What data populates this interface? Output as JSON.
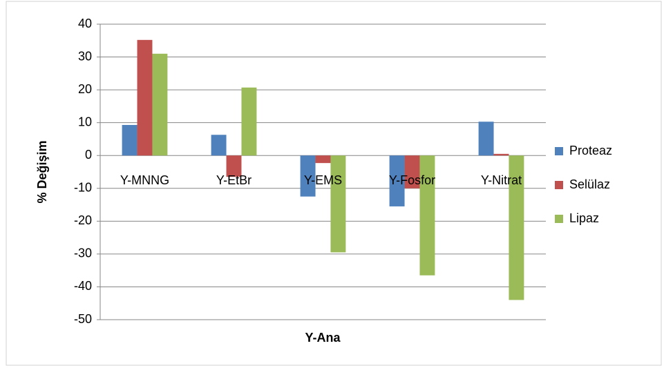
{
  "chart_data": {
    "type": "bar",
    "x_label": "Y-Ana",
    "y_label": "% Değişim",
    "categories": [
      "Y-MNNG",
      "Y-EtBr",
      "Y-EMS",
      "Y-Fosfor",
      "Y-Nitrat"
    ],
    "series": [
      {
        "name": "Proteaz",
        "color": "#4f81bd",
        "values": [
          9.3,
          6.3,
          -12.5,
          -15.5,
          10.3
        ]
      },
      {
        "name": "Selülaz",
        "color": "#c0504d",
        "values": [
          35.2,
          -6.5,
          -2.3,
          -10,
          0.5
        ]
      },
      {
        "name": "Lipaz",
        "color": "#9bbb59",
        "values": [
          31,
          20.7,
          -29.5,
          -36.5,
          -44
        ]
      }
    ],
    "ylim": [
      -50,
      40
    ],
    "yticks": [
      -50,
      -40,
      -30,
      -20,
      -10,
      0,
      10,
      20,
      30,
      40
    ],
    "grid": true,
    "legend": "right"
  }
}
